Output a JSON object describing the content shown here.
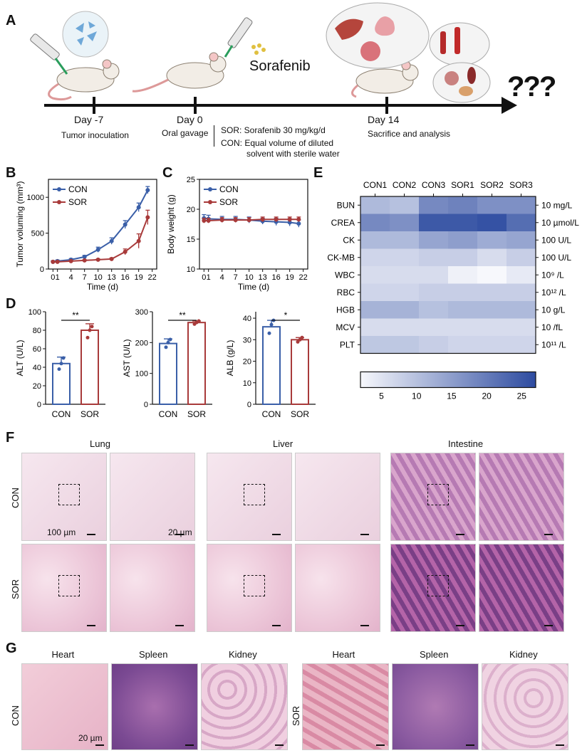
{
  "panel_labels": {
    "a": "A",
    "b": "B",
    "c": "C",
    "d": "D",
    "e": "E",
    "f": "F",
    "g": "G"
  },
  "timeline": {
    "drug": "Sorafenib",
    "question_marks": "???",
    "events": [
      {
        "day": "Day -7",
        "desc": "Tumor inoculation"
      },
      {
        "day": "Day 0",
        "desc": "Oral gavage"
      },
      {
        "day": "Day 14",
        "desc": "Sacrifice and analysis"
      }
    ],
    "sor_note": "SOR: Sorafenib  30 mg/kg/d",
    "con_note_1": "CON: Equal volume of diluted",
    "con_note_2": "solvent with sterile water"
  },
  "colors": {
    "con": "#3a5fa8",
    "sor": "#a83a3a"
  },
  "chart_data": [
    {
      "id": "B",
      "type": "line",
      "xlabel": "Time (d)",
      "ylabel": "Tumor voluming (mm³)",
      "xticks": [
        0,
        1,
        4,
        7,
        10,
        13,
        16,
        19,
        22
      ],
      "xlim": [
        -1,
        23
      ],
      "yticks": [
        0,
        500,
        1000
      ],
      "ylim": [
        0,
        1250
      ],
      "series": [
        {
          "name": "CON",
          "x": [
            0,
            1,
            4,
            7,
            10,
            13,
            16,
            19,
            21
          ],
          "y": [
            100,
            110,
            130,
            170,
            270,
            390,
            620,
            860,
            1100
          ],
          "err": [
            15,
            15,
            15,
            20,
            35,
            45,
            55,
            60,
            50
          ]
        },
        {
          "name": "SOR",
          "x": [
            0,
            1,
            4,
            7,
            10,
            13,
            16,
            19,
            21
          ],
          "y": [
            100,
            100,
            110,
            120,
            130,
            140,
            240,
            390,
            720
          ],
          "err": [
            10,
            10,
            10,
            10,
            10,
            15,
            40,
            100,
            100
          ]
        }
      ]
    },
    {
      "id": "C",
      "type": "line",
      "xlabel": "Time (d)",
      "ylabel": "Body weight (g)",
      "xticks": [
        0,
        1,
        4,
        7,
        10,
        13,
        16,
        19,
        22
      ],
      "xlim": [
        -1,
        23
      ],
      "yticks": [
        10,
        15,
        20,
        25
      ],
      "ylim": [
        10,
        25
      ],
      "series": [
        {
          "name": "CON",
          "x": [
            0,
            1,
            4,
            7,
            10,
            13,
            16,
            19,
            21
          ],
          "y": [
            18.5,
            18.4,
            18.3,
            18.3,
            18.2,
            18.0,
            17.9,
            17.8,
            17.6
          ],
          "err": [
            0.6,
            0.6,
            0.5,
            0.5,
            0.5,
            0.5,
            0.6,
            0.6,
            0.6
          ]
        },
        {
          "name": "SOR",
          "x": [
            0,
            1,
            4,
            7,
            10,
            13,
            16,
            19,
            21
          ],
          "y": [
            18.1,
            18.1,
            18.2,
            18.2,
            18.2,
            18.3,
            18.3,
            18.3,
            18.3
          ],
          "err": [
            0.4,
            0.4,
            0.4,
            0.4,
            0.4,
            0.4,
            0.4,
            0.4,
            0.4
          ]
        }
      ]
    },
    {
      "id": "D1",
      "type": "bar",
      "categories": [
        "CON",
        "SOR"
      ],
      "values": [
        44,
        80
      ],
      "err": [
        7,
        7
      ],
      "points": [
        [
          38,
          44,
          50
        ],
        [
          72,
          80,
          84
        ]
      ],
      "ylabel": "ALT (U/L)",
      "yticks": [
        0,
        20,
        40,
        60,
        80,
        100
      ],
      "ylim": [
        0,
        100
      ],
      "sig": "**"
    },
    {
      "id": "D2",
      "type": "bar",
      "categories": [
        "CON",
        "SOR"
      ],
      "values": [
        197,
        265
      ],
      "err": [
        15,
        5
      ],
      "points": [
        [
          185,
          200,
          210
        ],
        [
          260,
          265,
          270
        ]
      ],
      "ylabel": "AST (U/L)",
      "yticks": [
        0,
        100,
        200,
        300
      ],
      "ylim": [
        0,
        300
      ],
      "sig": "**"
    },
    {
      "id": "D3",
      "type": "bar",
      "categories": [
        "CON",
        "SOR"
      ],
      "values": [
        36,
        30
      ],
      "err": [
        3,
        1
      ],
      "points": [
        [
          33,
          37,
          39
        ],
        [
          29,
          30,
          31
        ]
      ],
      "ylabel": "ALB (g/L)",
      "yticks": [
        0,
        10,
        20,
        30,
        40
      ],
      "ylim": [
        0,
        43
      ],
      "sig": "*"
    },
    {
      "id": "E",
      "type": "heatmap",
      "columns": [
        "CON1",
        "CON2",
        "CON3",
        "SOR1",
        "SOR2",
        "SOR3"
      ],
      "rows": [
        "BUN",
        "CREA",
        "CK",
        "CK-MB",
        "WBC",
        "RBC",
        "HGB",
        "MCV",
        "PLT"
      ],
      "units": [
        "10 mg/L",
        "10 µmol/L",
        "100 U/L",
        "100 U/L",
        "10⁹ /L",
        "10¹² /L",
        "10 g/L",
        "10 /fL",
        "10¹¹ /L"
      ],
      "values": [
        [
          11,
          10,
          18,
          19,
          17,
          17
        ],
        [
          18,
          17,
          25,
          25,
          26,
          22
        ],
        [
          11,
          11,
          14,
          15,
          13,
          14
        ],
        [
          7,
          7,
          8,
          8,
          6,
          8
        ],
        [
          6,
          6,
          6,
          3,
          2,
          4
        ],
        [
          7,
          7,
          8,
          8,
          8,
          8
        ],
        [
          12,
          12,
          10,
          11,
          11,
          11
        ],
        [
          6,
          6,
          6,
          6,
          6,
          6
        ],
        [
          9,
          9,
          8,
          7,
          7,
          7
        ]
      ],
      "colorbar_ticks": [
        5,
        10,
        15,
        20,
        25
      ],
      "vmin": 2,
      "vmax": 27
    }
  ],
  "histology": {
    "F": {
      "columns": [
        "Lung",
        "Liver",
        "Intestine"
      ],
      "rows": [
        "CON",
        "SOR"
      ],
      "scale_low": "100 µm",
      "scale_high": "20 µm"
    },
    "G": {
      "columns": [
        "Heart",
        "Spleen",
        "Kidney"
      ],
      "groups": [
        "CON",
        "SOR"
      ],
      "scale": "20 µm"
    }
  }
}
